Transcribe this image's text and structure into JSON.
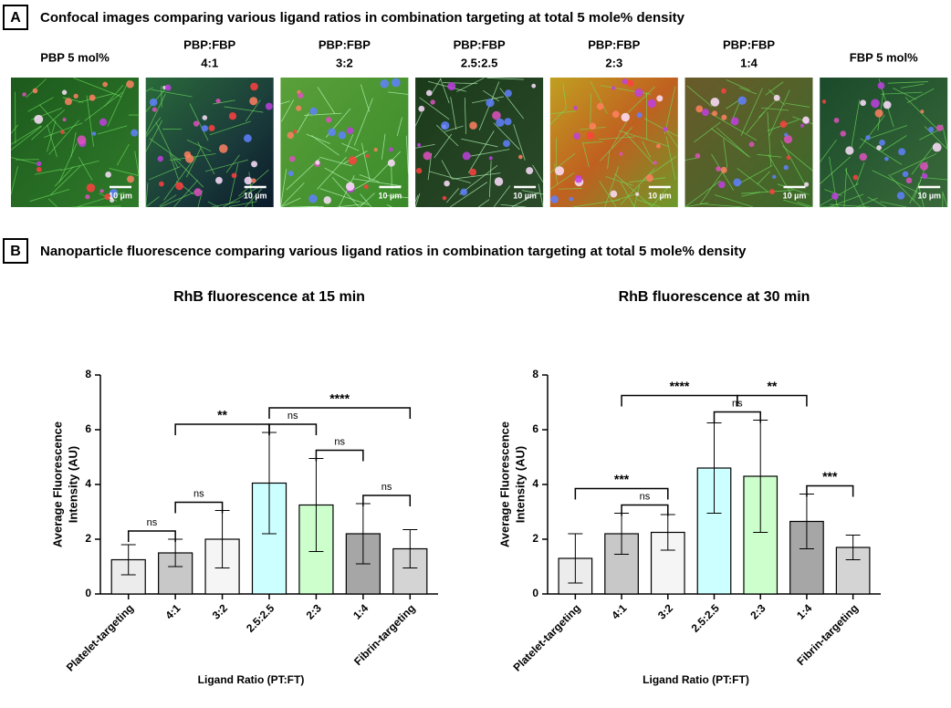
{
  "panel_a": {
    "label": "A",
    "title": "Confocal images comparing various ligand ratios in combination targeting at total 5 mole% density",
    "images": [
      {
        "label": [
          "PBP 5 mol%"
        ],
        "scale_bar": "10 µm"
      },
      {
        "label": [
          "PBP:FBP",
          "4:1"
        ],
        "scale_bar": "10 µm"
      },
      {
        "label": [
          "PBP:FBP",
          "3:2"
        ],
        "scale_bar": "10 µm"
      },
      {
        "label": [
          "PBP:FBP",
          "2.5:2.5"
        ],
        "scale_bar": "10 µm"
      },
      {
        "label": [
          "PBP:FBP",
          "2:3"
        ],
        "scale_bar": "10 µm"
      },
      {
        "label": [
          "PBP:FBP",
          "1:4"
        ],
        "scale_bar": "10 µm"
      },
      {
        "label": [
          "FBP 5 mol%"
        ],
        "scale_bar": "10 µm"
      }
    ]
  },
  "panel_b": {
    "label": "B",
    "title": "Nanoparticle fluorescence comparing various ligand ratios in combination targeting at total 5 mole% density"
  },
  "chart_data": [
    {
      "type": "bar",
      "title": "RhB fluorescence at 15 min",
      "ylabel": [
        "Average  Fluorescence",
        "Intensity (AU)"
      ],
      "xlabel": "Ligand Ratio  (PT:FT)",
      "categories": [
        "Platelet-targeting",
        "4:1",
        "3:2",
        "2.5:2.5",
        "2:3",
        "1:4",
        "Fibrin-targeting"
      ],
      "values": [
        1.25,
        1.5,
        2.0,
        4.05,
        3.25,
        2.2,
        1.65
      ],
      "errors": [
        0.55,
        0.5,
        1.05,
        1.85,
        1.7,
        1.1,
        0.7
      ],
      "colors": [
        "#ececec",
        "#c8c8c8",
        "#f5f5f5",
        "#ccffff",
        "#ccffcc",
        "#a6a6a6",
        "#d4d4d4"
      ],
      "ylim": [
        0,
        8
      ],
      "yticks": [
        0,
        2,
        4,
        6,
        8
      ],
      "brackets": [
        {
          "from": 0,
          "to": 1,
          "label": "ns"
        },
        {
          "from": 1,
          "to": 2,
          "label": "ns"
        },
        {
          "from": 1,
          "to": 3,
          "label": "**"
        },
        {
          "from": 3,
          "to": 4,
          "label": "ns"
        },
        {
          "from": 4,
          "to": 5,
          "label": "ns"
        },
        {
          "from": 5,
          "to": 6,
          "label": "ns"
        },
        {
          "from": 3,
          "to": 6,
          "label": "****"
        }
      ]
    },
    {
      "type": "bar",
      "title": "RhB fluorescence at 30 min",
      "ylabel": [
        "Average  Fluorescence",
        "Intensity (AU)"
      ],
      "xlabel": "Ligand Ratio  (PT:FT)",
      "categories": [
        "Platelet-targeting",
        "4:1",
        "3:2",
        "2.5:2.5",
        "2:3",
        "1:4",
        "Fibrin-targeting"
      ],
      "values": [
        1.3,
        2.2,
        2.25,
        4.6,
        4.3,
        2.65,
        1.7
      ],
      "errors": [
        0.9,
        0.75,
        0.65,
        1.65,
        2.05,
        1.0,
        0.45
      ],
      "colors": [
        "#ececec",
        "#c8c8c8",
        "#f5f5f5",
        "#ccffff",
        "#ccffcc",
        "#a6a6a6",
        "#d4d4d4"
      ],
      "ylim": [
        0,
        8
      ],
      "yticks": [
        0,
        2,
        4,
        6,
        8
      ],
      "brackets": [
        {
          "from": 1,
          "to": 2,
          "label": "ns"
        },
        {
          "from": 0,
          "to": 2,
          "label": "***"
        },
        {
          "from": 3,
          "to": 4,
          "label": "ns"
        },
        {
          "from": 1,
          "to": 3.5,
          "label": "****"
        },
        {
          "from": 3.5,
          "to": 5,
          "label": "**"
        },
        {
          "from": 5,
          "to": 6,
          "label": "***"
        }
      ]
    }
  ]
}
